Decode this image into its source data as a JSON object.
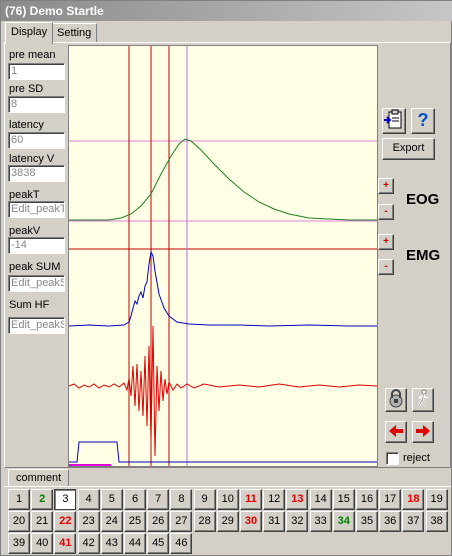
{
  "window": {
    "title": "(76) Demo Startle"
  },
  "tabs": [
    {
      "label": "Display"
    },
    {
      "label": "Setting"
    }
  ],
  "fields": [
    {
      "label": "pre mean",
      "value": "1"
    },
    {
      "label": "pre  SD",
      "value": "8"
    },
    {
      "label": "latency",
      "value": "60"
    },
    {
      "label": "latency V",
      "value": "3838"
    },
    {
      "label": "peakT",
      "value": "Edit_peakT"
    },
    {
      "label": "peakV",
      "value": "-14"
    },
    {
      "label": "peak SUM",
      "value": "Edit_peakS"
    },
    {
      "label": "Sum HF",
      "value": "Edit_peakS"
    }
  ],
  "controls": {
    "export_label": "Export",
    "help_label": "?",
    "eog_label": "EOG",
    "emg_label": "EMG",
    "plus": "+",
    "minus": "-",
    "reject_label": "reject",
    "reject_checked": false,
    "left_arrow": "arrow-left-icon",
    "right_arrow": "arrow-right-icon",
    "lock_icon": "lock-icon",
    "walker_icon": "walking-person-icon",
    "clipboard_icon": "clipboard-icon"
  },
  "comment_tab": {
    "label": "comment"
  },
  "trials": [
    {
      "n": "1",
      "c": "#000"
    },
    {
      "n": "2",
      "c": "#008000"
    },
    {
      "n": "3",
      "c": "#000",
      "sel": true
    },
    {
      "n": "4",
      "c": "#000"
    },
    {
      "n": "5",
      "c": "#000"
    },
    {
      "n": "6",
      "c": "#000"
    },
    {
      "n": "7",
      "c": "#000"
    },
    {
      "n": "8",
      "c": "#000"
    },
    {
      "n": "9",
      "c": "#000"
    },
    {
      "n": "10",
      "c": "#000"
    },
    {
      "n": "11",
      "c": "#e00000"
    },
    {
      "n": "12",
      "c": "#000"
    },
    {
      "n": "13",
      "c": "#e00000"
    },
    {
      "n": "14",
      "c": "#000"
    },
    {
      "n": "15",
      "c": "#000"
    },
    {
      "n": "16",
      "c": "#000"
    },
    {
      "n": "17",
      "c": "#000"
    },
    {
      "n": "18",
      "c": "#e00000"
    },
    {
      "n": "19",
      "c": "#000"
    },
    {
      "n": "20",
      "c": "#000"
    },
    {
      "n": "21",
      "c": "#000"
    },
    {
      "n": "22",
      "c": "#e00000"
    },
    {
      "n": "23",
      "c": "#000"
    },
    {
      "n": "24",
      "c": "#000"
    },
    {
      "n": "25",
      "c": "#000"
    },
    {
      "n": "26",
      "c": "#000"
    },
    {
      "n": "27",
      "c": "#000"
    },
    {
      "n": "28",
      "c": "#000"
    },
    {
      "n": "29",
      "c": "#000"
    },
    {
      "n": "30",
      "c": "#e00000"
    },
    {
      "n": "31",
      "c": "#000"
    },
    {
      "n": "32",
      "c": "#000"
    },
    {
      "n": "33",
      "c": "#000"
    },
    {
      "n": "34",
      "c": "#008000"
    },
    {
      "n": "35",
      "c": "#000"
    },
    {
      "n": "36",
      "c": "#000"
    },
    {
      "n": "37",
      "c": "#000"
    },
    {
      "n": "38",
      "c": "#000"
    },
    {
      "n": "39",
      "c": "#000"
    },
    {
      "n": "40",
      "c": "#000"
    },
    {
      "n": "41",
      "c": "#e00000"
    },
    {
      "n": "42",
      "c": "#000"
    },
    {
      "n": "43",
      "c": "#000"
    },
    {
      "n": "44",
      "c": "#000"
    },
    {
      "n": "45",
      "c": "#000"
    },
    {
      "n": "46",
      "c": "#000"
    }
  ]
}
